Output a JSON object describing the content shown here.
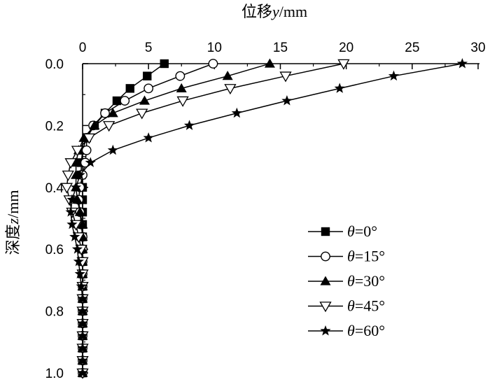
{
  "chart_data": {
    "type": "line",
    "title": "",
    "xlabel_parts": [
      "位移",
      "y",
      "/mm"
    ],
    "ylabel_parts": [
      "深度",
      "z",
      "/mm"
    ],
    "x_axis_position": "top",
    "y_axis_inverted": true,
    "xlim": [
      0,
      30
    ],
    "ylim": [
      0,
      1.0
    ],
    "x_ticks": [
      "0",
      "5",
      "10",
      "15",
      "20",
      "25",
      "30"
    ],
    "y_ticks": [
      "0.0",
      "0.2",
      "0.4",
      "0.6",
      "0.8",
      "1.0"
    ],
    "grid": false,
    "legend_position": "right",
    "series": [
      {
        "name": "θ=0°",
        "name_symbol": "θ",
        "name_value": "=0°",
        "marker": "square-filled",
        "points": [
          [
            6.2,
            0
          ],
          [
            4.9,
            0.04
          ],
          [
            3.6,
            0.08
          ],
          [
            2.6,
            0.12
          ],
          [
            1.7,
            0.16
          ],
          [
            0.9,
            0.2
          ],
          [
            0.3,
            0.24
          ],
          [
            0.0,
            0.28
          ],
          [
            -0.1,
            0.32
          ],
          [
            -0.1,
            0.36
          ],
          [
            0.0,
            0.4
          ],
          [
            0.0,
            0.44
          ],
          [
            0.0,
            0.48
          ],
          [
            0.0,
            0.52
          ],
          [
            0.0,
            0.56
          ],
          [
            0.0,
            0.6
          ],
          [
            0.0,
            0.64
          ],
          [
            0.0,
            0.68
          ],
          [
            0.0,
            0.72
          ],
          [
            0.0,
            0.76
          ],
          [
            0.0,
            0.8
          ],
          [
            0.0,
            0.84
          ],
          [
            0.0,
            0.88
          ],
          [
            0.0,
            0.92
          ],
          [
            0.0,
            0.96
          ],
          [
            0.0,
            1.0
          ]
        ]
      },
      {
        "name": "θ=15°",
        "name_symbol": "θ",
        "name_value": "=15°",
        "marker": "circle-open",
        "points": [
          [
            9.9,
            0
          ],
          [
            7.4,
            0.04
          ],
          [
            5.0,
            0.08
          ],
          [
            3.2,
            0.12
          ],
          [
            1.7,
            0.16
          ],
          [
            0.8,
            0.2
          ],
          [
            0.3,
            0.24
          ],
          [
            0.3,
            0.28
          ],
          [
            0.2,
            0.32
          ],
          [
            0.0,
            0.36
          ],
          [
            -0.2,
            0.4
          ],
          [
            -0.3,
            0.44
          ],
          [
            -0.2,
            0.48
          ],
          [
            -0.1,
            0.52
          ],
          [
            0.0,
            0.56
          ],
          [
            0.0,
            0.6
          ],
          [
            0.0,
            0.64
          ],
          [
            0.0,
            0.68
          ],
          [
            0.0,
            0.72
          ],
          [
            0.0,
            0.76
          ],
          [
            0.0,
            0.8
          ],
          [
            0.0,
            0.84
          ],
          [
            0.0,
            0.88
          ],
          [
            0.0,
            0.92
          ],
          [
            0.0,
            0.96
          ],
          [
            0.0,
            1.0
          ]
        ]
      },
      {
        "name": "θ=30°",
        "name_symbol": "θ",
        "name_value": "=30°",
        "marker": "triangle-filled",
        "points": [
          [
            14.2,
            0
          ],
          [
            11.0,
            0.04
          ],
          [
            7.5,
            0.08
          ],
          [
            4.7,
            0.12
          ],
          [
            2.3,
            0.16
          ],
          [
            0.9,
            0.2
          ],
          [
            0.1,
            0.24
          ],
          [
            -0.3,
            0.28
          ],
          [
            -0.5,
            0.32
          ],
          [
            -0.5,
            0.36
          ],
          [
            -0.5,
            0.4
          ],
          [
            -0.4,
            0.44
          ],
          [
            -0.2,
            0.48
          ],
          [
            0.0,
            0.52
          ],
          [
            0.0,
            0.56
          ],
          [
            0.0,
            0.6
          ],
          [
            0.0,
            0.64
          ],
          [
            0.0,
            0.68
          ],
          [
            0.0,
            0.72
          ],
          [
            0.0,
            0.76
          ],
          [
            0.0,
            0.8
          ],
          [
            0.0,
            0.84
          ],
          [
            0.0,
            0.88
          ],
          [
            0.0,
            0.92
          ],
          [
            0.0,
            0.96
          ],
          [
            0.0,
            1.0
          ]
        ]
      },
      {
        "name": "θ=45°",
        "name_symbol": "θ",
        "name_value": "=45°",
        "marker": "triangle-down-open",
        "points": [
          [
            19.8,
            0
          ],
          [
            15.4,
            0.04
          ],
          [
            11.2,
            0.08
          ],
          [
            7.6,
            0.12
          ],
          [
            4.5,
            0.16
          ],
          [
            2.0,
            0.2
          ],
          [
            0.5,
            0.24
          ],
          [
            -0.4,
            0.28
          ],
          [
            -0.9,
            0.32
          ],
          [
            -1.1,
            0.36
          ],
          [
            -1.2,
            0.4
          ],
          [
            -1.0,
            0.44
          ],
          [
            -0.8,
            0.48
          ],
          [
            -0.5,
            0.52
          ],
          [
            -0.3,
            0.56
          ],
          [
            -0.1,
            0.6
          ],
          [
            0.0,
            0.64
          ],
          [
            0.0,
            0.68
          ],
          [
            0.0,
            0.72
          ],
          [
            0.0,
            0.76
          ],
          [
            0.0,
            0.8
          ],
          [
            0.0,
            0.84
          ],
          [
            0.0,
            0.88
          ],
          [
            0.0,
            0.92
          ],
          [
            0.0,
            0.96
          ],
          [
            0.0,
            1.0
          ]
        ]
      },
      {
        "name": "θ=60°",
        "name_symbol": "θ",
        "name_value": "=60°",
        "marker": "star-filled",
        "points": [
          [
            28.8,
            0
          ],
          [
            23.6,
            0.04
          ],
          [
            19.5,
            0.08
          ],
          [
            15.5,
            0.12
          ],
          [
            11.7,
            0.16
          ],
          [
            8.1,
            0.2
          ],
          [
            5.0,
            0.24
          ],
          [
            2.3,
            0.28
          ],
          [
            0.6,
            0.32
          ],
          [
            -0.2,
            0.36
          ],
          [
            -0.5,
            0.4
          ],
          [
            -0.8,
            0.44
          ],
          [
            -0.9,
            0.48
          ],
          [
            -0.8,
            0.52
          ],
          [
            -0.6,
            0.56
          ],
          [
            -0.4,
            0.6
          ],
          [
            -0.3,
            0.64
          ],
          [
            -0.2,
            0.68
          ],
          [
            -0.1,
            0.72
          ],
          [
            0.0,
            0.76
          ],
          [
            0.0,
            0.8
          ],
          [
            0.0,
            0.84
          ],
          [
            0.0,
            0.88
          ],
          [
            0.0,
            0.92
          ],
          [
            0.0,
            0.96
          ],
          [
            0.0,
            1.0
          ]
        ]
      }
    ]
  }
}
